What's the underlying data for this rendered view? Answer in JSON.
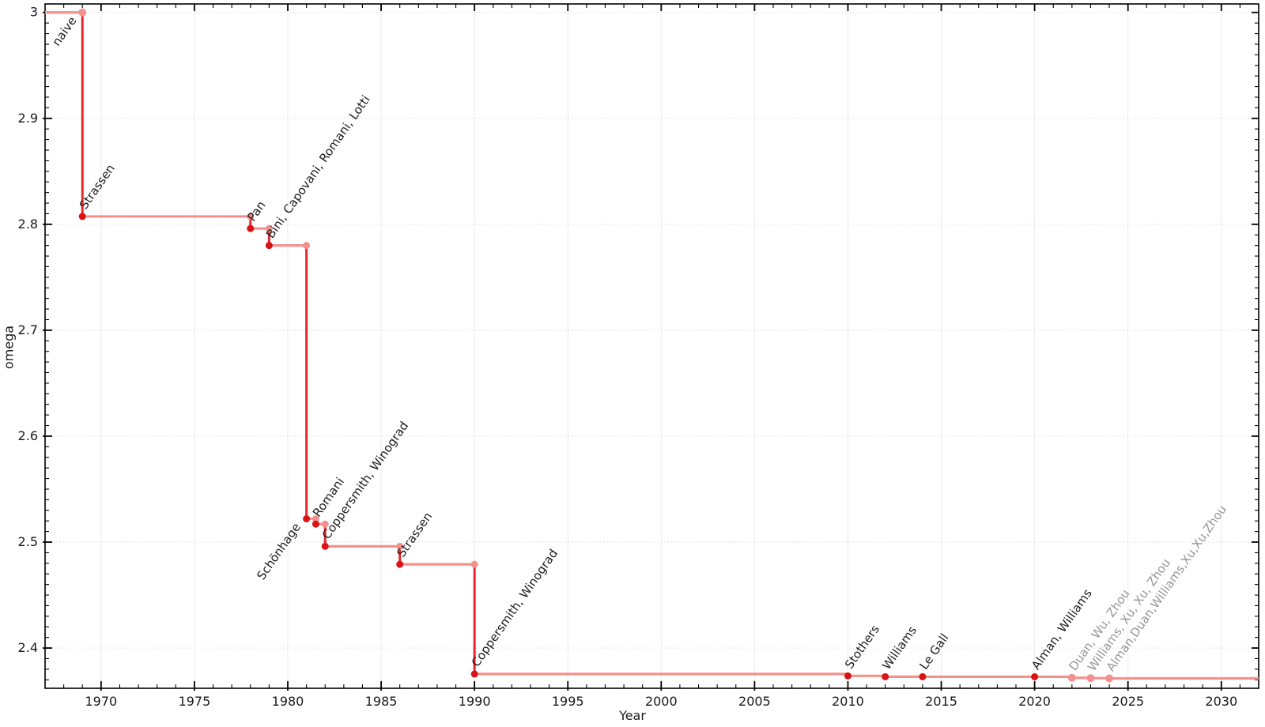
{
  "chart_data": {
    "type": "line",
    "variant": "step-post",
    "title": "",
    "xlabel": "Year",
    "ylabel": "omega",
    "xlim": [
      1967,
      2032
    ],
    "ylim": [
      2.362,
      3.008
    ],
    "grid": true,
    "legend": "none",
    "xticks": {
      "major_values": [
        1970,
        1975,
        1980,
        1985,
        1990,
        1995,
        2000,
        2005,
        2010,
        2015,
        2020,
        2025,
        2030
      ],
      "major_labels": [
        "1970",
        "1975",
        "1980",
        "1985",
        "1990",
        "1995",
        "2000",
        "2005",
        "2010",
        "2015",
        "2020",
        "2025",
        "2030"
      ],
      "minor_step_years": 1
    },
    "yticks": {
      "major_values": [
        2.4,
        2.5,
        2.6,
        2.7,
        2.8,
        2.9,
        3.0
      ],
      "major_labels": [
        "2.4",
        "2.5",
        "2.6",
        "2.7",
        "2.8",
        "2.9",
        "3"
      ],
      "minor_step": 0.01
    },
    "points": [
      {
        "label": "naive",
        "year": 1969,
        "omega": 3.0,
        "marker": "light",
        "label_color": "black",
        "label_side": "below"
      },
      {
        "label": "Strassen",
        "year": 1969,
        "omega": 2.8074,
        "marker": "dark",
        "label_color": "black",
        "label_side": "above"
      },
      {
        "label": "Pan",
        "year": 1978,
        "omega": 2.796,
        "marker": "dark",
        "label_color": "black",
        "label_side": "above"
      },
      {
        "label": "Bini, Capovani, Romani, Lotti",
        "year": 1979,
        "omega": 2.78,
        "marker": "dark",
        "label_color": "black",
        "label_side": "above"
      },
      {
        "label": "Schönhage",
        "year": 1981,
        "omega": 2.522,
        "marker": "dark",
        "label_color": "black",
        "label_side": "below"
      },
      {
        "label": "Romani",
        "year": 1981.5,
        "omega": 2.517,
        "marker": "dark",
        "label_color": "black",
        "label_side": "above"
      },
      {
        "label": "Coppersmith, Winograd",
        "year": 1982,
        "omega": 2.496,
        "marker": "dark",
        "label_color": "black",
        "label_side": "above"
      },
      {
        "label": "Strassen",
        "year": 1986,
        "omega": 2.479,
        "marker": "dark",
        "label_color": "black",
        "label_side": "above"
      },
      {
        "label": "Coppersmith, Winograd",
        "year": 1990,
        "omega": 2.3755,
        "marker": "dark",
        "label_color": "black",
        "label_side": "above"
      },
      {
        "label": "Stothers",
        "year": 2010,
        "omega": 2.3737,
        "marker": "dark",
        "label_color": "black",
        "label_side": "above"
      },
      {
        "label": "Williams",
        "year": 2012,
        "omega": 2.3729,
        "marker": "dark",
        "label_color": "black",
        "label_side": "above"
      },
      {
        "label": "Le Gall",
        "year": 2014,
        "omega": 2.3728639,
        "marker": "dark",
        "label_color": "black",
        "label_side": "above"
      },
      {
        "label": "Alman, Williams",
        "year": 2020,
        "omega": 2.3728596,
        "marker": "dark",
        "label_color": "black",
        "label_side": "above"
      },
      {
        "label": "Duan, Wu, Zhou",
        "year": 2022,
        "omega": 2.371866,
        "marker": "light",
        "label_color": "gray",
        "label_side": "above"
      },
      {
        "label": "Williams, Xu, Xu, Zhou",
        "year": 2023,
        "omega": 2.371552,
        "marker": "light",
        "label_color": "gray",
        "label_side": "above"
      },
      {
        "label": "Alman,Duan,Williams,Xu,Xu,Zhou",
        "year": 2024,
        "omega": 2.371339,
        "marker": "light",
        "label_color": "gray",
        "label_side": "above"
      }
    ],
    "style": {
      "plateau_line_color": "#f4918f",
      "drop_line_color": "#e8272d",
      "marker_dark_color": "#d81417",
      "marker_light_color": "#f4918f",
      "label_black_color": "#1c1c1c",
      "label_gray_color": "#969696",
      "grid_vertical_color": "#ececec",
      "grid_horizontal_color": "#e0e0e0",
      "axis_color": "#000000",
      "tick_label_color": "#1a1a1a"
    }
  }
}
